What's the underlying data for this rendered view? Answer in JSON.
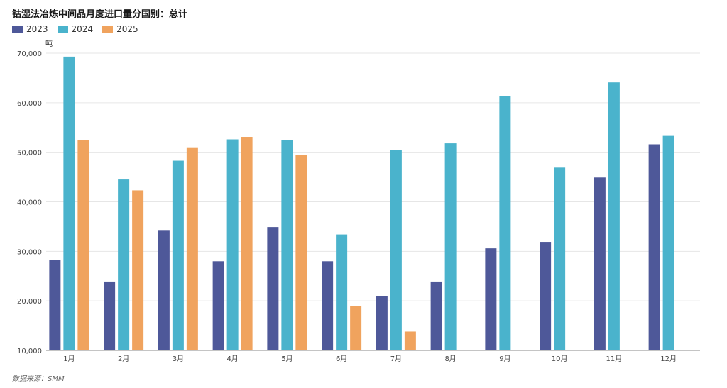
{
  "title": "钴湿法冶炼中间品月度进口量分国别：总计",
  "unit": "吨",
  "source": "数据来源：SMM",
  "chart_data": {
    "type": "bar",
    "title": "钴湿法冶炼中间品月度进口量分国别：总计",
    "ylabel": "吨",
    "xlabel": "",
    "categories": [
      "1月",
      "2月",
      "3月",
      "4月",
      "5月",
      "6月",
      "7月",
      "8月",
      "9月",
      "10月",
      "11月",
      "12月"
    ],
    "series": [
      {
        "name": "2023",
        "color": "#4e5899",
        "values": [
          28200,
          23900,
          34300,
          28000,
          34900,
          28000,
          21000,
          23900,
          30600,
          31900,
          44900,
          51600
        ]
      },
      {
        "name": "2024",
        "color": "#4ab3cc",
        "values": [
          69300,
          44500,
          48300,
          52600,
          52400,
          33400,
          50400,
          51800,
          61300,
          46900,
          64100,
          53300
        ]
      },
      {
        "name": "2025",
        "color": "#f0a35e",
        "values": [
          52400,
          42300,
          51000,
          53100,
          49400,
          19000,
          13800,
          null,
          null,
          null,
          null,
          null
        ]
      }
    ],
    "ylim": [
      10000,
      70000
    ],
    "yticks": [
      10000,
      20000,
      30000,
      40000,
      50000,
      60000,
      70000
    ],
    "ytick_labels": [
      "10,000",
      "20,000",
      "30,000",
      "40,000",
      "50,000",
      "60,000",
      "70,000"
    ],
    "grid": true,
    "legend_position": "top-left"
  }
}
